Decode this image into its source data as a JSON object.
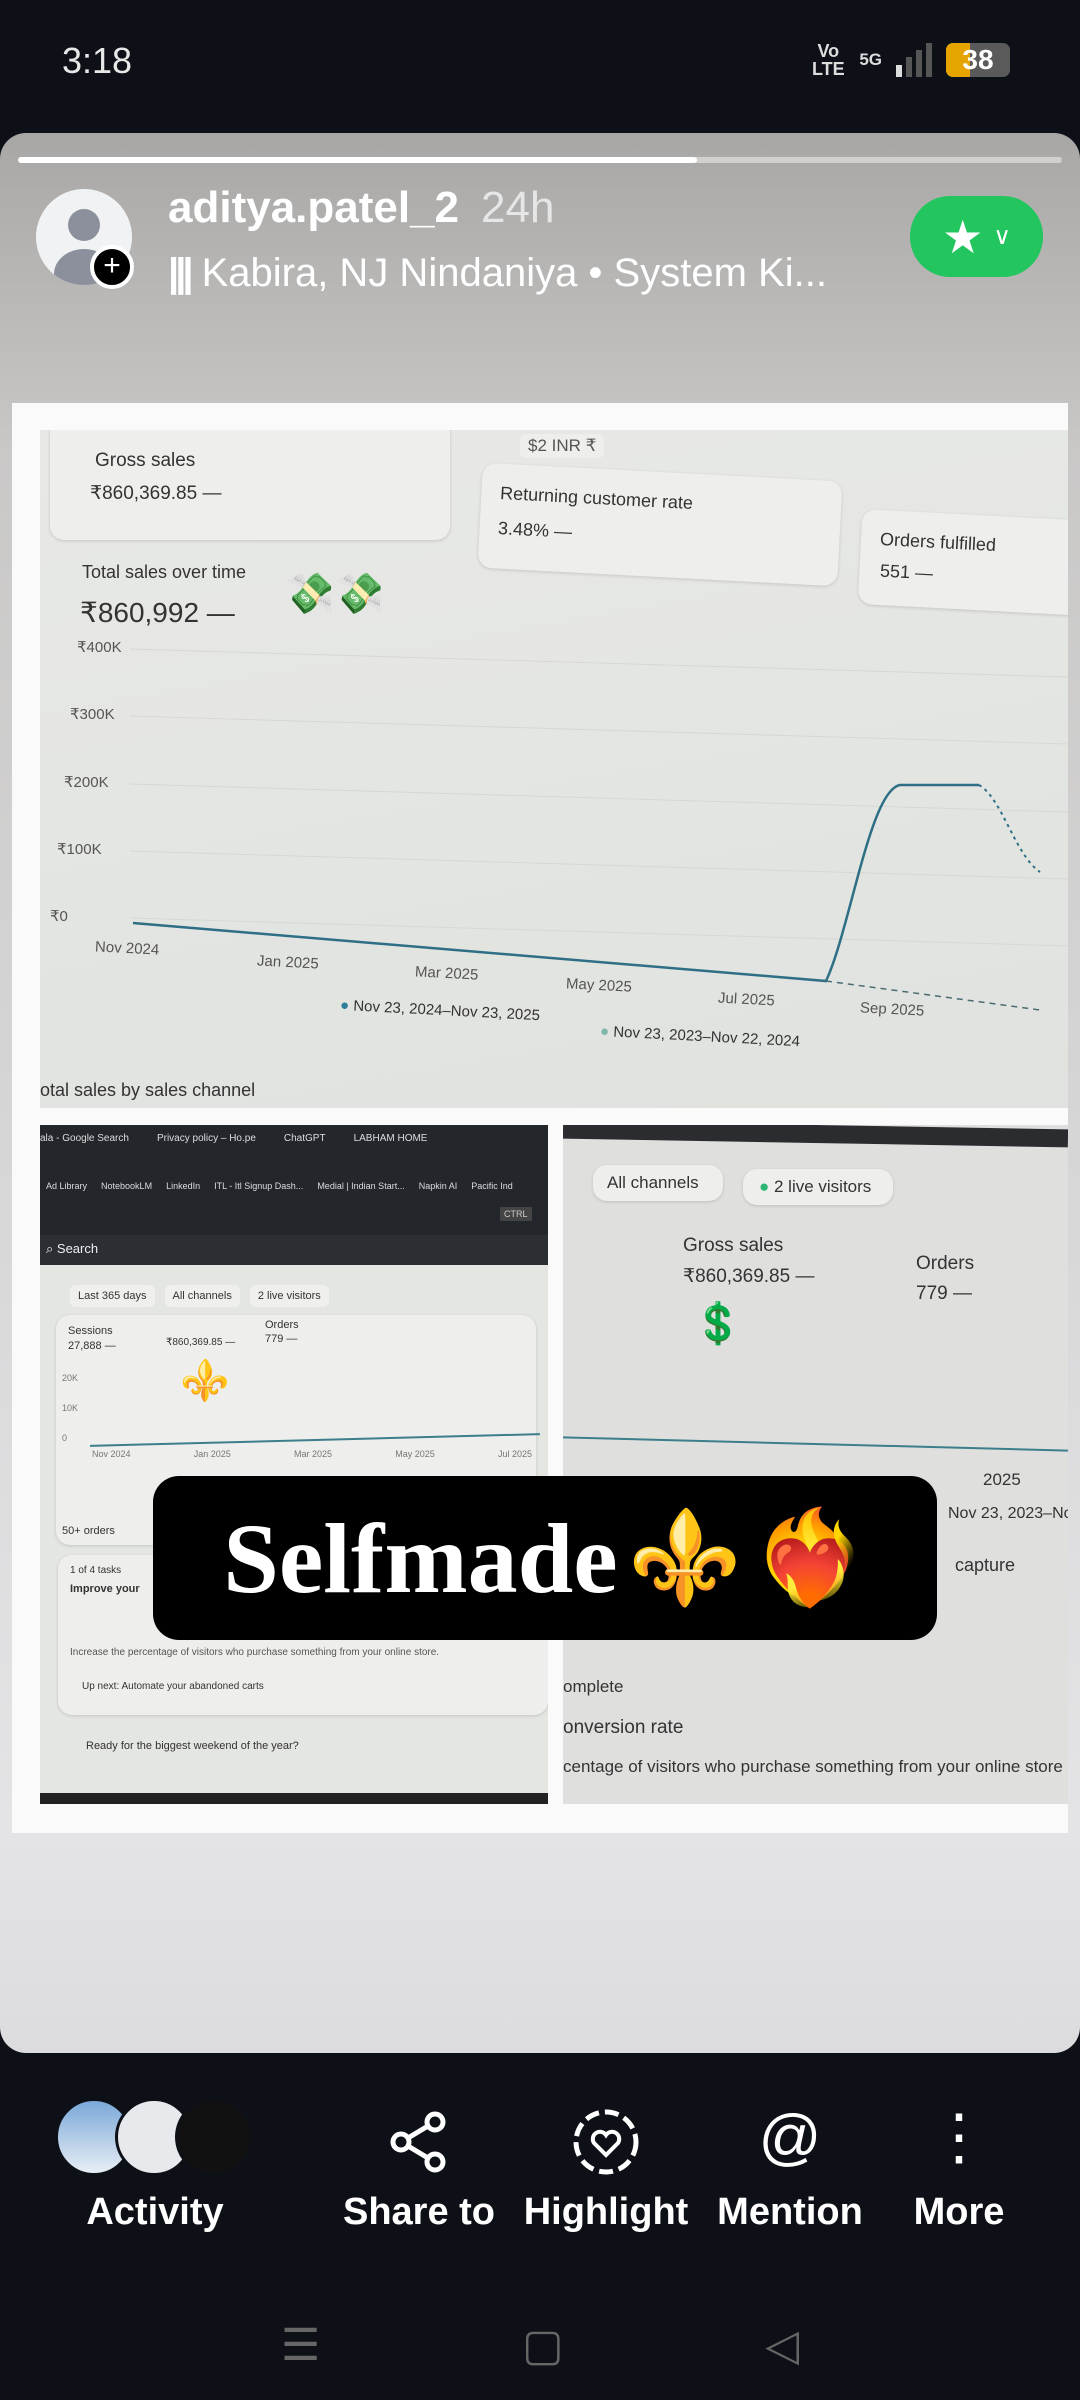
{
  "status": {
    "time": "3:18",
    "volte": "Vo LTE",
    "network": "5G",
    "battery": "38",
    "battery_level": 38
  },
  "story": {
    "progress": 0.65,
    "username": "aditya.patel_2",
    "age": "24h",
    "music": "Kabira, NJ Nindaniya • System Ki...",
    "favorite_color": "#22c55e"
  },
  "shot1": {
    "date_chip": "$2 INR ₹",
    "gross_label": "Gross sales",
    "gross_value": "₹860,369.85 —",
    "rcr_label": "Returning customer rate",
    "rcr_value": "3.48% —",
    "orders_label": "Orders fulfilled",
    "orders_value": "551 —",
    "chart_title": "Total sales over time",
    "chart_total": "₹860,992 —",
    "y_ticks": [
      "₹400K",
      "₹300K",
      "₹200K",
      "₹100K",
      "₹0"
    ],
    "x_ticks": [
      "Nov 2024",
      "Jan 2025",
      "Mar 2025",
      "May 2025",
      "Jul 2025",
      "Sep 2025"
    ],
    "legend": [
      "Nov 23, 2024–Nov 23, 2025",
      "Nov 23, 2023–Nov 22, 2024"
    ],
    "footer": "otal sales by sales channel"
  },
  "shot2": {
    "tabs": [
      "ala - Google Search",
      "Privacy policy – Ho.pe",
      "ChatGPT",
      "LABHAM HOME"
    ],
    "bookmarks": [
      "Ad Library",
      "NotebookLM",
      "LinkedIn",
      "ITL - Itl Signup Dash...",
      "Medial | Indian Start...",
      "Napkin AI",
      "Pacific Ind"
    ],
    "search": "Search",
    "ctrl": "CTRL",
    "chips": [
      "Last 365 days",
      "All channels",
      "2 live visitors"
    ],
    "sessions_label": "Sessions",
    "sessions_value": "27,888 —",
    "gross_value": "₹860,369.85 —",
    "orders_label": "Orders",
    "orders_value": "779 —",
    "y_ticks": [
      "20K",
      "10K",
      "0"
    ],
    "x_ticks": [
      "Nov 2024",
      "Jan 2025",
      "Mar 2025",
      "May 2025",
      "Jul 2025"
    ],
    "orders_badge": "50+ orders",
    "tasks": "1 of 4 tasks",
    "improve": "Improve your",
    "improve_desc": "Increase the percentage of visitors who purchase something from your online store.",
    "upnext": "Up next: Automate your abandoned carts",
    "ready": "Ready for the biggest weekend of the year?"
  },
  "shot3": {
    "chips": [
      "All channels",
      "2 live visitors"
    ],
    "gross_label": "Gross sales",
    "gross_value": "₹860,369.85 —",
    "orders_label": "Orders",
    "orders_value": "779 —",
    "x_tick": "2025",
    "legend": "Nov 23, 2023–No",
    "capture": "capture",
    "complete": "omplete",
    "conv": "onversion rate",
    "conv_desc": "centage of visitors who purchase something from your online store"
  },
  "sticker": {
    "text": "Selfmade",
    "emoji1": "⚜️",
    "emoji2": "❤️‍🔥"
  },
  "actions": [
    {
      "label": "Activity"
    },
    {
      "label": "Share to",
      "icon": "⟨"
    },
    {
      "label": "Highlight",
      "icon": "♡"
    },
    {
      "label": "Mention",
      "icon": "@"
    },
    {
      "label": "More",
      "icon": "⋮"
    }
  ],
  "nav": {
    "menu": "☰",
    "home": "▢",
    "back": "◁"
  }
}
